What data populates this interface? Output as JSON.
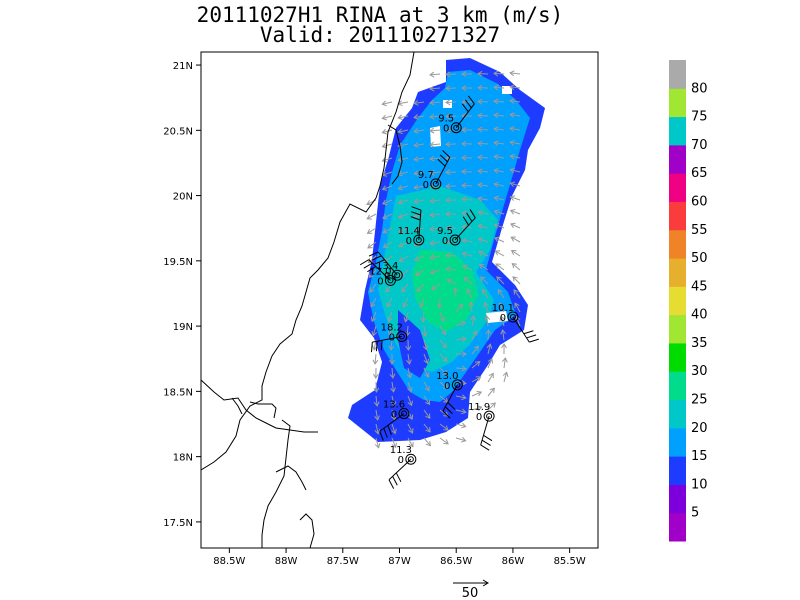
{
  "title": {
    "line1": "20111027H1 RINA at 3 km (m/s)",
    "line2": "Valid: 201110271327"
  },
  "axes": {
    "x_ticks": [
      {
        "lon": -88.5,
        "label": "88.5W"
      },
      {
        "lon": -88.0,
        "label": "88W"
      },
      {
        "lon": -87.5,
        "label": "87.5W"
      },
      {
        "lon": -87.0,
        "label": "87W"
      },
      {
        "lon": -86.5,
        "label": "86.5W"
      },
      {
        "lon": -86.0,
        "label": "86W"
      },
      {
        "lon": -85.5,
        "label": "85.5W"
      }
    ],
    "y_ticks": [
      {
        "lat": 17.5,
        "label": "17.5N"
      },
      {
        "lat": 18.0,
        "label": "18N"
      },
      {
        "lat": 18.5,
        "label": "18.5N"
      },
      {
        "lat": 19.0,
        "label": "19N"
      },
      {
        "lat": 19.5,
        "label": "19.5N"
      },
      {
        "lat": 20.0,
        "label": "20N"
      },
      {
        "lat": 20.5,
        "label": "20.5N"
      },
      {
        "lat": 21.0,
        "label": "21N"
      }
    ],
    "lon_range": [
      -88.75,
      -85.25
    ],
    "lat_range": [
      17.3,
      21.1
    ]
  },
  "colorbar": {
    "labels": [
      "5",
      "10",
      "15",
      "20",
      "25",
      "30",
      "35",
      "40",
      "45",
      "50",
      "55",
      "60",
      "65",
      "70",
      "75",
      "80"
    ],
    "colors": [
      "#a000c8",
      "#7d00dc",
      "#1e3cff",
      "#00a0ff",
      "#00c8c8",
      "#00dc8c",
      "#00dc00",
      "#a0e632",
      "#e6dc32",
      "#e6af2d",
      "#f08228",
      "#fa3c3c",
      "#f00082",
      "#a000c8",
      "#00c8c8",
      "#a0e632",
      "#aaaaaa"
    ]
  },
  "stations": [
    {
      "lon": -86.5,
      "lat": 20.52,
      "speed": "9.5",
      "code": "0"
    },
    {
      "lon": -86.68,
      "lat": 20.09,
      "speed": "9.7",
      "code": "0"
    },
    {
      "lon": -86.83,
      "lat": 19.66,
      "speed": "11.4",
      "code": "0"
    },
    {
      "lon": -86.51,
      "lat": 19.66,
      "speed": "9.5",
      "code": "0"
    },
    {
      "lon": -87.02,
      "lat": 19.39,
      "speed": "13.4",
      "code": "0"
    },
    {
      "lon": -87.08,
      "lat": 19.35,
      "speed": "12.0",
      "code": "0"
    },
    {
      "lon": -86.0,
      "lat": 19.07,
      "speed": "10.1",
      "code": "0"
    },
    {
      "lon": -86.98,
      "lat": 18.92,
      "speed": "18.2",
      "code": "0"
    },
    {
      "lon": -86.49,
      "lat": 18.55,
      "speed": "13.0",
      "code": "0"
    },
    {
      "lon": -86.96,
      "lat": 18.33,
      "speed": "13.6",
      "code": "0"
    },
    {
      "lon": -86.21,
      "lat": 18.31,
      "speed": "11.9",
      "code": "0"
    },
    {
      "lon": -86.9,
      "lat": 17.98,
      "speed": "11.3",
      "code": "0"
    }
  ],
  "reference_vector": {
    "label": "50"
  }
}
